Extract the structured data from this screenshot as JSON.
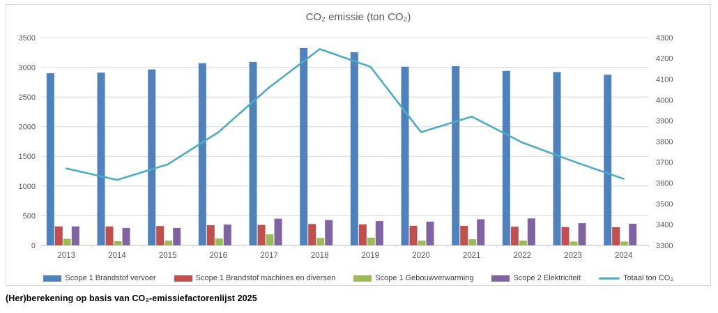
{
  "footer": "(Her)berekening op basis van CO₂-emissiefactorenlijst 2025",
  "chart_data": {
    "type": "bar",
    "subtype": "grouped-bar-with-line-combo",
    "title": "CO₂ emissie (ton CO₂)",
    "categories": [
      "2013",
      "2014",
      "2015",
      "2016",
      "2017",
      "2018",
      "2019",
      "2020",
      "2021",
      "2022",
      "2023",
      "2024"
    ],
    "series": [
      {
        "name": "Scope 1 Brandstof vervoer",
        "render": "bar",
        "axis": "left",
        "color": "#4F81BD",
        "values": [
          2900,
          2910,
          2965,
          3070,
          3090,
          3325,
          3255,
          3010,
          3020,
          2940,
          2920,
          2875
        ]
      },
      {
        "name": "Scope 1 Brandstof machines en diversen",
        "render": "bar",
        "axis": "left",
        "color": "#C0504D",
        "values": [
          320,
          320,
          325,
          340,
          345,
          360,
          355,
          330,
          330,
          315,
          310,
          305
        ]
      },
      {
        "name": "Scope 1 Gebouwverwarming",
        "render": "bar",
        "axis": "left",
        "color": "#9BBB59",
        "values": [
          110,
          70,
          80,
          115,
          185,
          125,
          130,
          80,
          105,
          80,
          65,
          65
        ]
      },
      {
        "name": "Scope 2 Elektriciteit",
        "render": "bar",
        "axis": "left",
        "color": "#8064A2",
        "values": [
          320,
          295,
          295,
          350,
          450,
          425,
          410,
          400,
          440,
          455,
          375,
          365
        ]
      },
      {
        "name": "Totaal ton CO₂",
        "render": "line",
        "axis": "right",
        "color": "#4BACC6",
        "values": [
          3670,
          3615,
          3690,
          3845,
          4060,
          4245,
          4160,
          3845,
          3920,
          3795,
          3705,
          3620
        ]
      }
    ],
    "left_axis": {
      "min": 0,
      "max": 3500,
      "step": 500,
      "ticks": [
        0,
        500,
        1000,
        1500,
        2000,
        2500,
        3000,
        3500
      ]
    },
    "right_axis": {
      "min": 3300,
      "max": 4300,
      "step": 100,
      "ticks": [
        3300,
        3400,
        3500,
        3600,
        3700,
        3800,
        3900,
        4000,
        4100,
        4200,
        4300
      ]
    },
    "grid": true,
    "legend_position": "bottom",
    "colors": {
      "grid": "#d9d9d9",
      "axis_line": "#bfbfbf",
      "tick_label": "#595959",
      "title": "#595959",
      "legend_text": "#404040"
    }
  }
}
